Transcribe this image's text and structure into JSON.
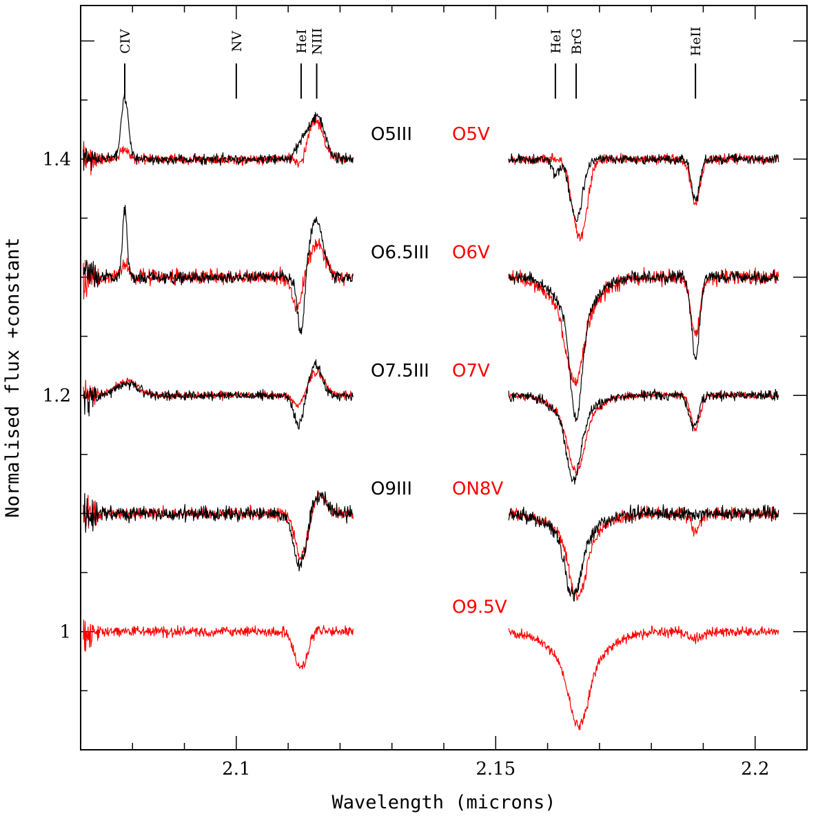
{
  "chart_data": {
    "type": "line",
    "title": "",
    "xlabel": "Wavelength (microns)",
    "ylabel": "Normalised flux +constant",
    "xlim": [
      2.07,
      2.21
    ],
    "ylim": [
      0.9,
      1.53
    ],
    "x_ticks": [
      {
        "value": 2.1,
        "label": "2.1"
      },
      {
        "value": 2.15,
        "label": "2.15"
      },
      {
        "value": 2.2,
        "label": "2.2"
      }
    ],
    "y_ticks": [
      {
        "value": 1.0,
        "label": "1"
      },
      {
        "value": 1.2,
        "label": "1.2"
      },
      {
        "value": 1.4,
        "label": "1.4"
      }
    ],
    "line_markers": [
      {
        "label": "CIV",
        "x": 2.0785
      },
      {
        "label": "NV",
        "x": 2.1
      },
      {
        "label": "HeI",
        "x": 2.1125
      },
      {
        "label": "NIII",
        "x": 2.1155
      },
      {
        "label": "HeI",
        "x": 2.1615
      },
      {
        "label": "BrG",
        "x": 2.1655
      },
      {
        "label": "HeII",
        "x": 2.1885
      }
    ],
    "colors": {
      "giant": "#000000",
      "dwarf": "#ff0000"
    },
    "rows": [
      {
        "giant_label": "O5III",
        "dwarf_label": "O5V",
        "baseline": 1.4
      },
      {
        "giant_label": "O6.5III",
        "dwarf_label": "O6V",
        "baseline": 1.3
      },
      {
        "giant_label": "O7.5III",
        "dwarf_label": "O7V",
        "baseline": 1.2
      },
      {
        "giant_label": "O9III",
        "dwarf_label": "ON8V",
        "baseline": 1.1
      },
      {
        "giant_label": "",
        "dwarf_label": "O9.5V",
        "baseline": 1.0
      }
    ],
    "segments": [
      [
        2.0705,
        2.1225
      ],
      [
        2.1525,
        2.2045
      ]
    ],
    "series": [
      {
        "name": "O5III",
        "color": "#000000",
        "baseline": 1.4,
        "noise": 0.004,
        "left": [
          {
            "c": 2.0785,
            "a": 0.052,
            "w": 0.0007
          },
          {
            "c": 2.1125,
            "a": 0.012,
            "w": 0.001
          },
          {
            "c": 2.1155,
            "a": 0.037,
            "w": 0.0015
          }
        ],
        "right": [
          {
            "c": 2.1655,
            "a": -0.052,
            "w": 0.0012
          },
          {
            "c": 2.1615,
            "a": -0.012,
            "w": 0.0007
          },
          {
            "c": 2.1885,
            "a": -0.035,
            "w": 0.0008
          }
        ]
      },
      {
        "name": "O5V",
        "color": "#ff0000",
        "baseline": 1.4,
        "noise": 0.004,
        "left": [
          {
            "c": 2.0785,
            "a": 0.008,
            "w": 0.0008
          },
          {
            "c": 2.1125,
            "a": -0.008,
            "w": 0.0007
          },
          {
            "c": 2.1153,
            "a": 0.033,
            "w": 0.0014
          }
        ],
        "right": [
          {
            "c": 2.1662,
            "a": -0.066,
            "w": 0.0014
          },
          {
            "c": 2.1885,
            "a": -0.037,
            "w": 0.0009
          }
        ]
      },
      {
        "name": "O6.5III",
        "color": "#000000",
        "baseline": 1.3,
        "noise": 0.005,
        "left": [
          {
            "c": 2.0785,
            "a": 0.058,
            "w": 0.00045
          },
          {
            "c": 2.1125,
            "a": -0.052,
            "w": 0.0007
          },
          {
            "c": 2.1153,
            "a": 0.048,
            "w": 0.0014
          }
        ],
        "right": [
          {
            "c": 2.1655,
            "a": -0.086,
            "w": 0.0011
          },
          {
            "c": 2.1655,
            "a": -0.034,
            "w": 0.0035
          },
          {
            "c": 2.1885,
            "a": -0.068,
            "w": 0.0008
          }
        ]
      },
      {
        "name": "O6V",
        "color": "#ff0000",
        "baseline": 1.3,
        "noise": 0.006,
        "left": [
          {
            "c": 2.0785,
            "a": 0.012,
            "w": 0.0008
          },
          {
            "c": 2.1118,
            "a": -0.028,
            "w": 0.0009
          },
          {
            "c": 2.1155,
            "a": 0.028,
            "w": 0.0015
          }
        ],
        "right": [
          {
            "c": 2.1652,
            "a": -0.058,
            "w": 0.0016
          },
          {
            "c": 2.1652,
            "a": -0.032,
            "w": 0.0042
          },
          {
            "c": 2.1885,
            "a": -0.048,
            "w": 0.0009
          }
        ]
      },
      {
        "name": "O7.5III",
        "color": "#000000",
        "baseline": 1.2,
        "noise": 0.004,
        "left": [
          {
            "c": 2.079,
            "a": 0.01,
            "w": 0.002
          },
          {
            "c": 2.112,
            "a": -0.026,
            "w": 0.0009
          },
          {
            "c": 2.1153,
            "a": 0.026,
            "w": 0.0012
          }
        ],
        "right": [
          {
            "c": 2.165,
            "a": -0.052,
            "w": 0.0013
          },
          {
            "c": 2.165,
            "a": -0.02,
            "w": 0.0035
          },
          {
            "c": 2.1882,
            "a": -0.027,
            "w": 0.0009
          }
        ]
      },
      {
        "name": "O7V",
        "color": "#ff0000",
        "baseline": 1.2,
        "noise": 0.003,
        "left": [
          {
            "c": 2.079,
            "a": 0.012,
            "w": 0.0022
          },
          {
            "c": 2.112,
            "a": -0.01,
            "w": 0.0009
          },
          {
            "c": 2.1155,
            "a": 0.02,
            "w": 0.0015
          }
        ],
        "right": [
          {
            "c": 2.1655,
            "a": -0.045,
            "w": 0.0015
          },
          {
            "c": 2.1655,
            "a": -0.02,
            "w": 0.0038
          },
          {
            "c": 2.1885,
            "a": -0.028,
            "w": 0.0009
          }
        ]
      },
      {
        "name": "O9III",
        "color": "#000000",
        "baseline": 1.1,
        "noise": 0.006,
        "left": [
          {
            "c": 2.1118,
            "a": -0.037,
            "w": 0.0011
          },
          {
            "c": 2.1132,
            "a": -0.018,
            "w": 0.0008
          },
          {
            "c": 2.116,
            "a": 0.014,
            "w": 0.0014
          }
        ],
        "right": [
          {
            "c": 2.165,
            "a": -0.05,
            "w": 0.0015
          },
          {
            "c": 2.165,
            "a": -0.02,
            "w": 0.0045
          }
        ]
      },
      {
        "name": "ON8V",
        "color": "#ff0000",
        "baseline": 1.1,
        "noise": 0.005,
        "left": [
          {
            "c": 2.1125,
            "a": -0.037,
            "w": 0.0012
          },
          {
            "c": 2.116,
            "a": 0.016,
            "w": 0.0012
          }
        ],
        "right": [
          {
            "c": 2.1658,
            "a": -0.05,
            "w": 0.0016
          },
          {
            "c": 2.1658,
            "a": -0.02,
            "w": 0.0045
          },
          {
            "c": 2.1885,
            "a": -0.016,
            "w": 0.0008
          }
        ]
      },
      {
        "name": "O9.5V",
        "color": "#ff0000",
        "baseline": 1.0,
        "noise": 0.004,
        "left": [
          {
            "c": 2.1125,
            "a": -0.031,
            "w": 0.0013
          },
          {
            "c": 2.1155,
            "a": 0.004,
            "w": 0.0008
          }
        ],
        "right": [
          {
            "c": 2.166,
            "a": -0.052,
            "w": 0.0018
          },
          {
            "c": 2.166,
            "a": -0.028,
            "w": 0.005
          },
          {
            "c": 2.1885,
            "a": -0.006,
            "w": 0.0015
          }
        ]
      }
    ]
  }
}
